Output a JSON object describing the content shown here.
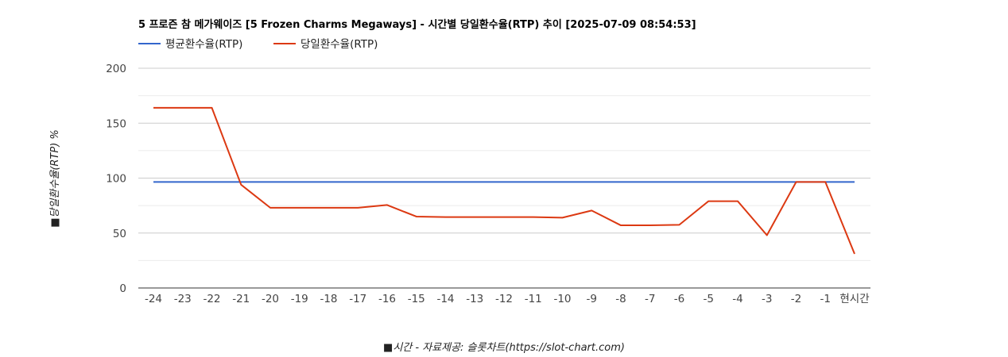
{
  "chart_data": {
    "type": "line",
    "title": "5 프로즌 참 메가웨이즈 [5 Frozen Charms Megaways] - 시간별 당일환수율(RTP) 추이 [2025-07-09 08:54:53]",
    "xlabel": "■시간 - 자료제공: 슬롯차트(https://slot-chart.com)",
    "ylabel": "■당일환수율(RTP) %",
    "ylim": [
      0,
      200
    ],
    "yticks": [
      "0",
      "50",
      "100",
      "150",
      "200"
    ],
    "categories": [
      "-24",
      "-23",
      "-22",
      "-21",
      "-20",
      "-19",
      "-18",
      "-17",
      "-16",
      "-15",
      "-14",
      "-13",
      "-12",
      "-11",
      "-10",
      "-9",
      "-8",
      "-7",
      "-6",
      "-5",
      "-4",
      "-3",
      "-2",
      "-1",
      "현시간"
    ],
    "grid": true,
    "legend_position": "top-left",
    "series": [
      {
        "name": "평균환수율(RTP)",
        "color": "#3366cc",
        "values": [
          96.5,
          96.5,
          96.5,
          96.5,
          96.5,
          96.5,
          96.5,
          96.5,
          96.5,
          96.5,
          96.5,
          96.5,
          96.5,
          96.5,
          96.5,
          96.5,
          96.5,
          96.5,
          96.5,
          96.5,
          96.5,
          96.5,
          96.5,
          96.5,
          96.5
        ]
      },
      {
        "name": "당일환수율(RTP)",
        "color": "#dc3912",
        "values": [
          164,
          164,
          164,
          94,
          73,
          73,
          73,
          73,
          75.5,
          65,
          64.5,
          64.5,
          64.5,
          64.5,
          64,
          70.5,
          57,
          57,
          57.5,
          79,
          79,
          48,
          96.5,
          96.5,
          31
        ]
      }
    ]
  }
}
